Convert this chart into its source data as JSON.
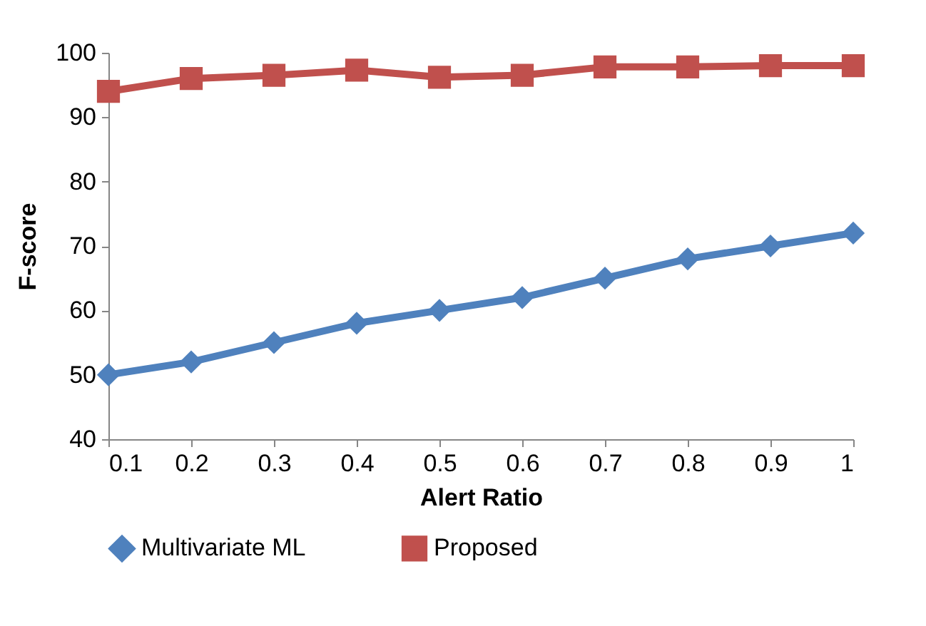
{
  "chart_data": {
    "type": "line",
    "xlabel": "Alert Ratio",
    "ylabel": "F-score",
    "categories": [
      "0.1",
      "0.2",
      "0.3",
      "0.4",
      "0.5",
      "0.6",
      "0.7",
      "0.8",
      "0.9",
      "1"
    ],
    "series": [
      {
        "name": "Multivariate ML",
        "color": "#4f81bd",
        "marker": "diamond",
        "values": [
          50,
          52,
          55,
          58,
          60,
          62,
          65,
          68,
          70,
          72
        ]
      },
      {
        "name": "Proposed",
        "color": "#c0504d",
        "marker": "square",
        "values": [
          94,
          96,
          96.5,
          97.3,
          96.2,
          96.5,
          97.8,
          97.8,
          98,
          98
        ]
      }
    ],
    "ylim": [
      40,
      100
    ],
    "yticks": [
      40,
      50,
      60,
      70,
      80,
      90,
      100
    ],
    "grid": false,
    "legend": "bottom",
    "line_style": "solid"
  }
}
